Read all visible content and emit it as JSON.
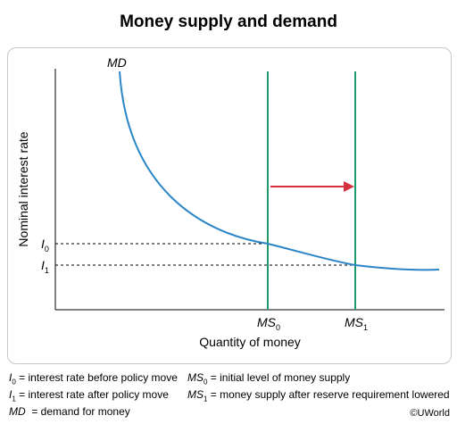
{
  "title": "Money supply and demand",
  "axes": {
    "ylabel": "Nominal interest rate",
    "xlabel": "Quantity of money"
  },
  "curve_labels": {
    "md": "MD",
    "ms0_main": "MS",
    "ms0_sub": "0",
    "ms1_main": "MS",
    "ms1_sub": "1",
    "i0_main": "I",
    "i0_sub": "0",
    "i1_main": "I",
    "i1_sub": "1"
  },
  "legend": [
    {
      "sym": "I",
      "sub": "0",
      "text": " = interest rate before policy move"
    },
    {
      "sym": "I",
      "sub": "1",
      "text": " = interest rate after policy move"
    },
    {
      "sym": "MD",
      "sub": "",
      "text": "  = demand for money"
    },
    {
      "sym": "MS",
      "sub": "0",
      "text": " = initial level of money supply"
    },
    {
      "sym": "MS",
      "sub": "1",
      "text": " = money supply after reserve requirement lowered"
    }
  ],
  "copyright": "©UWorld",
  "colors": {
    "demand_curve": "#2a86c6",
    "supply_lines": "#1d9a6c",
    "shift_arrow": "#d6313f",
    "guide_lines": "#000000"
  }
}
